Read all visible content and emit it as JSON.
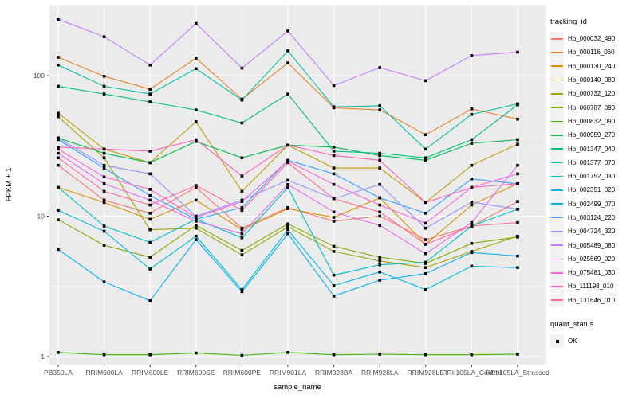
{
  "chart_data": {
    "type": "line",
    "title": "",
    "xlabel": "sample_name",
    "ylabel": "FPKM + 1",
    "y_scale": "log10",
    "y_ticks": [
      1,
      10,
      100
    ],
    "y_minor_ticks": [
      3.1623,
      31.623,
      316.23
    ],
    "ylim": [
      0.88,
      320
    ],
    "grid": true,
    "panel_bg": "#EBEBEB",
    "grid_color": "#FFFFFF",
    "tick_label_color": "#4D4D4D",
    "point_shape": "square",
    "point_color": "#000000",
    "legend_title": "tracking_id",
    "legend2_title": "quant_status",
    "legend2_items": [
      {
        "label": "OK",
        "symbol": "black-square"
      }
    ],
    "x_categories": [
      "PB350LA",
      "RRIM600LA",
      "RRIM600LE",
      "RRIM600SE",
      "RRIM600PE",
      "RRIM901LA",
      "RRIM928BA",
      "RRIM928LA",
      "RRIM928LE",
      "RRII105LA_Control",
      "RRII105LA_Stressed"
    ],
    "series": [
      {
        "name": "Hb_000032_490",
        "color": "#F8766D",
        "values": [
          23,
          13,
          10.5,
          16,
          8.2,
          11.5,
          9.2,
          10,
          6.8,
          8.5,
          12.7
        ]
      },
      {
        "name": "Hb_000116_060",
        "color": "#E88526",
        "values": [
          135,
          99,
          80,
          133,
          68,
          123,
          59,
          57,
          38,
          58,
          49
        ]
      },
      {
        "name": "Hb_000130_240",
        "color": "#D89000",
        "values": [
          16,
          12.5,
          9.5,
          13,
          8,
          11.3,
          9.8,
          13.5,
          6.3,
          12,
          17
        ]
      },
      {
        "name": "Hb_000140_080",
        "color": "#C09B00",
        "values": [
          54,
          30,
          24,
          47,
          15,
          32,
          22,
          22,
          12.5,
          23,
          32.5
        ]
      },
      {
        "name": "Hb_000732_120",
        "color": "#A3A500",
        "values": [
          51,
          26,
          8,
          8.2,
          5.3,
          8.4,
          5.6,
          4.8,
          4.3,
          5.6,
          7.2
        ]
      },
      {
        "name": "Hb_000787_090",
        "color": "#7CAE00",
        "values": [
          9.4,
          6.2,
          5.1,
          8.6,
          5.7,
          8.8,
          6.1,
          5.1,
          4.6,
          6.4,
          7.1
        ]
      },
      {
        "name": "Hb_000832_090",
        "color": "#39B600",
        "values": [
          1.07,
          1.03,
          1.03,
          1.06,
          1.02,
          1.07,
          1.03,
          1.04,
          1.03,
          1.03,
          1.04
        ]
      },
      {
        "name": "Hb_000959_270",
        "color": "#00BB4E",
        "values": [
          36,
          28,
          24,
          34,
          26,
          32,
          31,
          27,
          25,
          33,
          35
        ]
      },
      {
        "name": "Hb_001347_040",
        "color": "#00BF7D",
        "values": [
          84,
          74,
          65,
          57,
          46,
          74,
          29,
          28,
          26,
          35,
          62
        ]
      },
      {
        "name": "Hb_001377_070",
        "color": "#00C1A3",
        "values": [
          119,
          84,
          74,
          112,
          67,
          150,
          60,
          61,
          30,
          53,
          63
        ]
      },
      {
        "name": "Hb_001752_030",
        "color": "#00BFC4",
        "values": [
          16,
          8.5,
          6.5,
          9.5,
          7,
          16,
          3.8,
          4.5,
          4.7,
          8.5,
          11.2
        ]
      },
      {
        "name": "Hb_002351_020",
        "color": "#00BAE0",
        "values": [
          11,
          7.8,
          4.2,
          7.2,
          3.0,
          8.0,
          3.2,
          4.0,
          3.0,
          4.4,
          4.3
        ]
      },
      {
        "name": "Hb_002499_070",
        "color": "#00B0F6",
        "values": [
          5.8,
          3.4,
          2.5,
          6.8,
          2.9,
          7.5,
          2.7,
          3.5,
          3.9,
          5.5,
          5.2
        ]
      },
      {
        "name": "Hb_003124_220",
        "color": "#35A2FF",
        "values": [
          35,
          22,
          14,
          9.5,
          11.5,
          25,
          20,
          13.5,
          10.5,
          18.4,
          17
        ]
      },
      {
        "name": "Hb_004724_320",
        "color": "#9590FF",
        "values": [
          36,
          23,
          20,
          10,
          13,
          18,
          13.3,
          16.8,
          8.2,
          12.6,
          11.2
        ]
      },
      {
        "name": "Hb_005489_080",
        "color": "#C77CFF",
        "values": [
          252,
          189,
          119,
          235,
          113,
          208,
          85,
          114,
          92,
          139,
          147
        ]
      },
      {
        "name": "Hb_025669_020",
        "color": "#E76BF3",
        "values": [
          28,
          17,
          13,
          9.2,
          7.5,
          16.8,
          10.7,
          8.6,
          5.4,
          9,
          23
        ]
      },
      {
        "name": "Hb_075481_030",
        "color": "#FA62DB",
        "values": [
          30,
          19,
          15.5,
          9.8,
          12.7,
          24.7,
          16.8,
          12,
          8.9,
          16,
          20
        ]
      },
      {
        "name": "Hb_111198_010",
        "color": "#FF62BC",
        "values": [
          31,
          30,
          29,
          35,
          19.3,
          32,
          27,
          25,
          12.5,
          16,
          17
        ]
      },
      {
        "name": "Hb_131646_010",
        "color": "#FF6A98",
        "values": [
          26,
          15,
          12,
          16.5,
          11,
          24,
          13.3,
          10.7,
          6.3,
          8.5,
          9.0
        ]
      }
    ]
  }
}
